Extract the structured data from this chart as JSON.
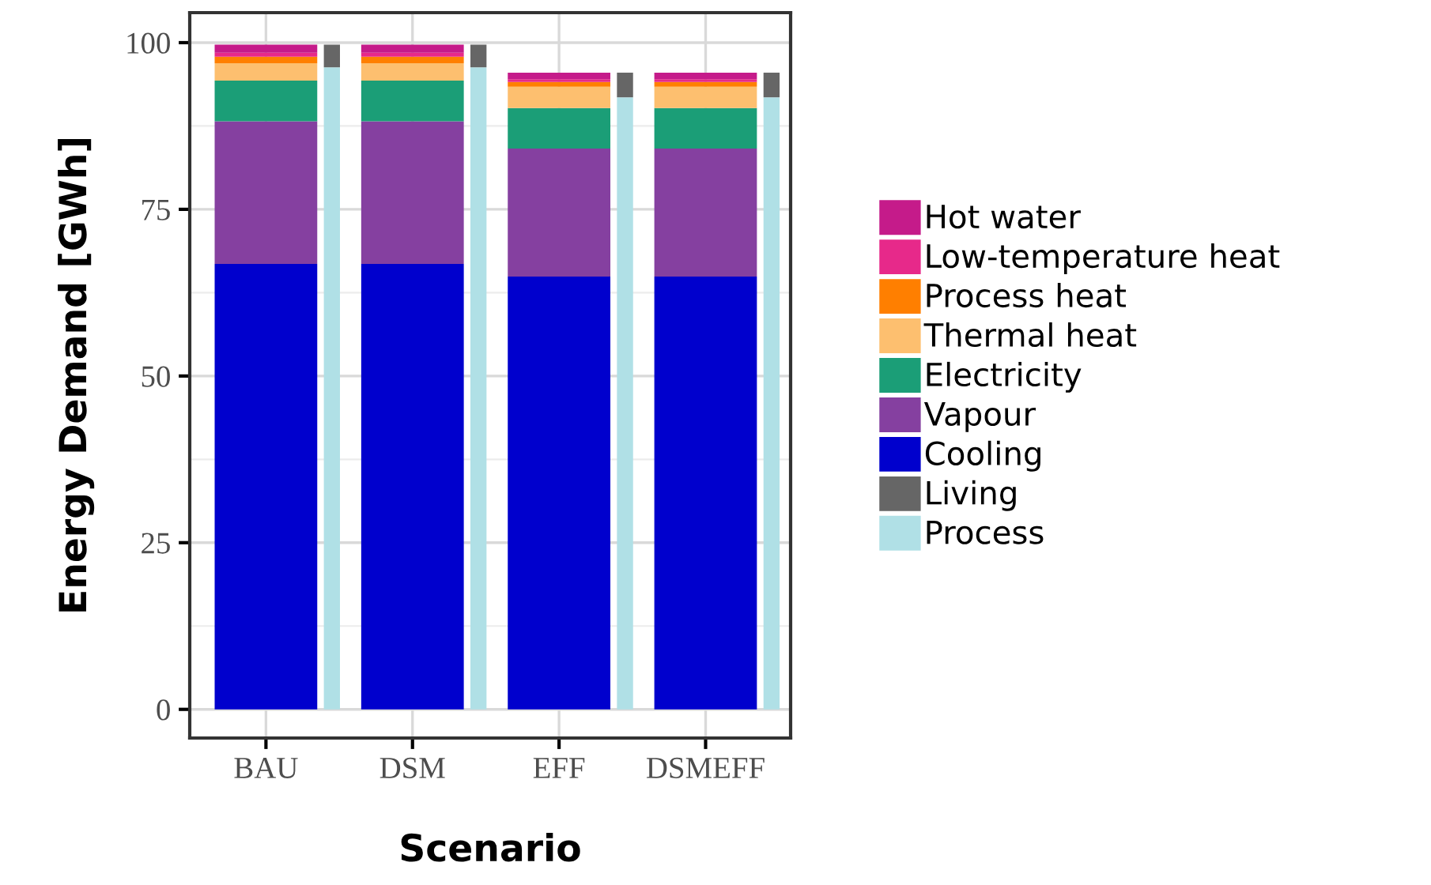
{
  "chart_data": {
    "type": "bar",
    "stacked": true,
    "xlabel": "Scenario",
    "ylabel": "Energy Demand [GWh]",
    "categories": [
      "BAU",
      null,
      "DSM",
      null,
      "EFF",
      null,
      "DSMEFF",
      null
    ],
    "series": [
      {
        "name": "Process",
        "color": "#b0e0e6",
        "values": [
          null,
          96.3,
          null,
          96.3,
          null,
          91.8,
          null,
          91.8
        ]
      },
      {
        "name": "Living",
        "color": "#666666",
        "values": [
          null,
          3.4,
          null,
          3.4,
          null,
          3.7,
          null,
          3.7
        ]
      },
      {
        "name": "Cooling",
        "color": "#0000cd",
        "values": [
          66.8,
          null,
          66.8,
          null,
          64.9,
          null,
          64.9,
          null
        ]
      },
      {
        "name": "Vapour",
        "color": "#8540a0",
        "values": [
          21.4,
          null,
          21.4,
          null,
          19.2,
          null,
          19.2,
          null
        ]
      },
      {
        "name": "Electricity",
        "color": "#1b9e77",
        "values": [
          6.1,
          null,
          6.1,
          null,
          6.1,
          null,
          6.1,
          null
        ]
      },
      {
        "name": "Thermal heat",
        "color": "#fdbf6f",
        "values": [
          2.6,
          null,
          2.6,
          null,
          3.2,
          null,
          3.2,
          null
        ]
      },
      {
        "name": "Process heat",
        "color": "#ff7f00",
        "values": [
          1.0,
          null,
          1.0,
          null,
          0.7,
          null,
          0.7,
          null
        ]
      },
      {
        "name": "Low-temperature heat",
        "color": "#e7298a",
        "values": [
          0.6,
          null,
          0.6,
          null,
          0.4,
          null,
          0.4,
          null
        ]
      },
      {
        "name": "Hot water",
        "color": "#c51b8a",
        "values": [
          1.2,
          null,
          1.2,
          null,
          1.0,
          null,
          1.0,
          null
        ]
      }
    ],
    "ylim": [
      -4.3,
      104.5
    ],
    "yticks": [
      0,
      25,
      50,
      75,
      100
    ],
    "grid": true,
    "legend": "right"
  }
}
